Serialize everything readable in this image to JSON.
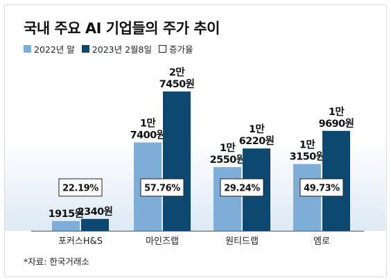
{
  "title": "국내 주요 AI 기업들의 주가 추이",
  "legend": [
    {
      "label": "2022년 말",
      "color": "#7eadd8",
      "outline": false
    },
    {
      "label": "2023년 2월8일",
      "color": "#0c4870",
      "outline": false
    },
    {
      "label": "증가율",
      "color": "#ffffff",
      "outline": true
    }
  ],
  "source": "*자료: 한국거래소",
  "chart_data": {
    "type": "bar",
    "title": "국내 주요 AI 기업들의 주가 추이",
    "categories": [
      "포커스H&S",
      "마인즈랩",
      "원티드랩",
      "엠로"
    ],
    "series": [
      {
        "name": "2022년 말",
        "color": "#7eadd8",
        "values": [
          1915,
          17400,
          12550,
          13150
        ],
        "labels": [
          [
            "1915원"
          ],
          [
            "1만",
            "7400원"
          ],
          [
            "1만",
            "2550원"
          ],
          [
            "1만",
            "3150원"
          ]
        ]
      },
      {
        "name": "2023년 2월8일",
        "color": "#0c4870",
        "values": [
          2340,
          27450,
          16220,
          19690
        ],
        "labels": [
          [
            "2340원"
          ],
          [
            "2만",
            "7450원"
          ],
          [
            "1만",
            "6220원"
          ],
          [
            "1만",
            "9690원"
          ]
        ]
      }
    ],
    "growth": [
      "22.19%",
      "57.76%",
      "29.24%",
      "49.73%"
    ],
    "unit": "원",
    "ylim": [
      0,
      30000
    ],
    "grid": false,
    "legend_position": "top-left"
  }
}
